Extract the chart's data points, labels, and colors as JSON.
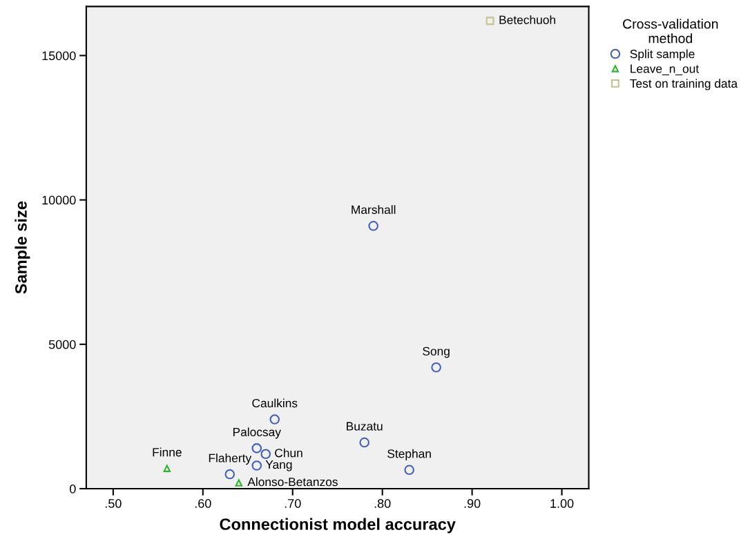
{
  "chart_data": {
    "type": "scatter",
    "xlabel": "Connectionist model accuracy",
    "ylabel": "Sample size",
    "legend_title": "Cross-validation\nmethod",
    "legend": "top right",
    "grid": false,
    "xlim": [
      0.47,
      1.03
    ],
    "xticks": [
      {
        "value": 0.5,
        "label": ".50"
      },
      {
        "value": 0.6,
        "label": ".60"
      },
      {
        "value": 0.7,
        "label": ".70"
      },
      {
        "value": 0.8,
        "label": ".80"
      },
      {
        "value": 0.9,
        "label": ".90"
      },
      {
        "value": 1.0,
        "label": "1.00"
      }
    ],
    "ylim": [
      0,
      16700
    ],
    "yticks": [
      0,
      5000,
      10000,
      15000
    ],
    "series": [
      {
        "name": "Split sample",
        "color": "#3f5fbf",
        "marker": "circle",
        "x": [
          0.79,
          0.86,
          0.68,
          0.78,
          0.66,
          0.67,
          0.66,
          0.83,
          0.63
        ],
        "values": [
          9100,
          4200,
          2400,
          1600,
          1400,
          1200,
          800,
          650,
          500
        ]
      },
      {
        "name": "Leave_n_out",
        "color": "#2db52d",
        "marker": "triangle",
        "x": [
          0.56,
          0.64
        ],
        "values": [
          700,
          200
        ]
      },
      {
        "name": "Test on training data",
        "color": "#c8c08a",
        "marker": "square",
        "x": [
          0.92
        ],
        "values": [
          16200
        ]
      }
    ],
    "annotations": [
      {
        "text": "Betechuoh",
        "x": 0.92,
        "y": 16200
      },
      {
        "text": "Marshall",
        "x": 0.79,
        "y": 9100
      },
      {
        "text": "Song",
        "x": 0.86,
        "y": 4200
      },
      {
        "text": "Caulkins",
        "x": 0.68,
        "y": 2400
      },
      {
        "text": "Buzatu",
        "x": 0.78,
        "y": 1600
      },
      {
        "text": "Palocsay",
        "x": 0.66,
        "y": 1400
      },
      {
        "text": "Chun",
        "x": 0.67,
        "y": 1200
      },
      {
        "text": "Yang",
        "x": 0.66,
        "y": 800
      },
      {
        "text": "Stephan",
        "x": 0.83,
        "y": 650
      },
      {
        "text": "Finne",
        "x": 0.56,
        "y": 700
      },
      {
        "text": "Flaherty",
        "x": 0.63,
        "y": 500
      },
      {
        "text": "Alonso-Betanzos",
        "x": 0.64,
        "y": 200
      }
    ]
  }
}
